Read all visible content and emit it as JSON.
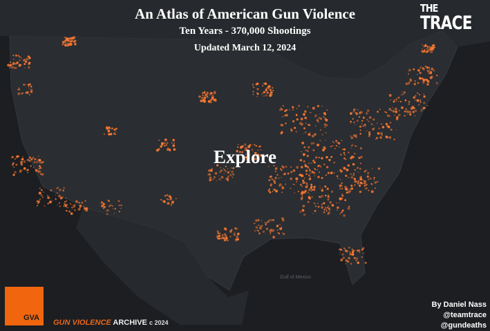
{
  "header": {
    "title": "An Atlas of American Gun Violence",
    "subtitle": "Ten Years - 370,000 Shootings",
    "updated": "Updated March 12, 2024"
  },
  "explore_label": "Explore",
  "trace_logo": {
    "line1": "THE",
    "line2": "TRACE"
  },
  "gva": {
    "badge": "GVA",
    "name_orange": "GUN VIOLENCE",
    "name_white": "ARCHIVE",
    "copyright": "c 2024"
  },
  "credits": {
    "author": "By Daniel Nass",
    "handle1": "@teamtrace",
    "handle2": "@gundeaths"
  },
  "map_labels": {
    "gulf": "Gulf of Mexico"
  },
  "colors": {
    "background": "#1c1e21",
    "land": "#2a2d31",
    "dots": "#ff7a33",
    "gva_orange": "#f0650e"
  }
}
